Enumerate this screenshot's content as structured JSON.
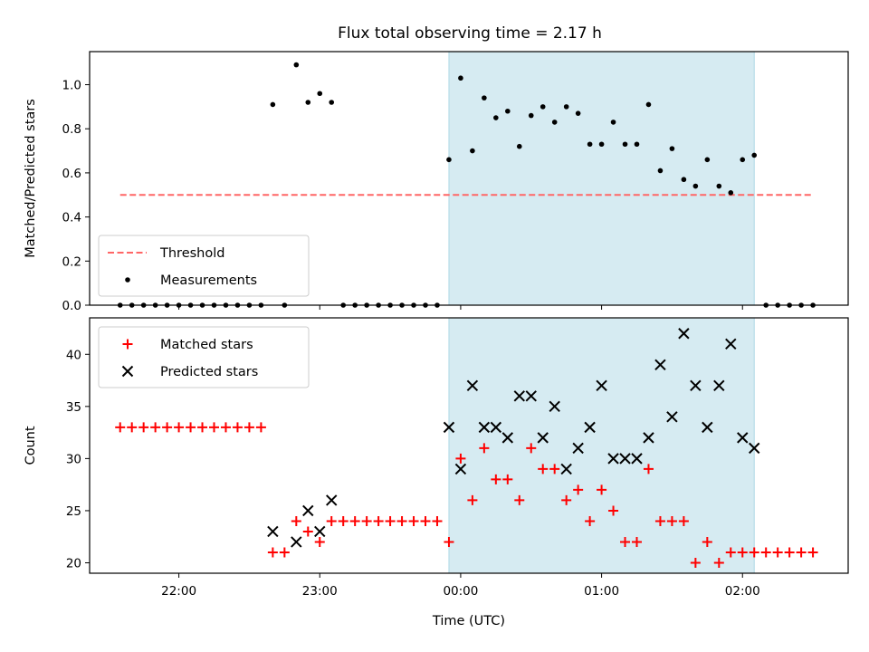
{
  "title": "Flux total observing time = 2.17 h",
  "chart_data": [
    {
      "type": "scatter",
      "ylabel": "Matched/Predicted stars",
      "xlim": [
        "21:22",
        "02:45"
      ],
      "ylim": [
        0,
        1.15
      ],
      "yticks": [
        "0.0",
        "0.2",
        "0.4",
        "0.6",
        "0.8",
        "1.0"
      ],
      "yticks_values": [
        0,
        0.2,
        0.4,
        0.6,
        0.8,
        1.0
      ],
      "shaded_interval": {
        "x": [
          "23:55",
          "02:05"
        ],
        "color": "#add8e6"
      },
      "threshold": {
        "name": "Threshold",
        "x": [
          "21:35",
          "02:30"
        ],
        "y": 0.5,
        "color": "#ff6666",
        "style": "dashed"
      },
      "legend": {
        "placement": "lower-left",
        "entries": [
          "Threshold",
          "Measurements"
        ]
      },
      "series": [
        {
          "name": "Measurements",
          "color": "#000000",
          "marker": "dot",
          "points": [
            [
              "21:35",
              0
            ],
            [
              "21:40",
              0
            ],
            [
              "21:45",
              0
            ],
            [
              "21:50",
              0
            ],
            [
              "21:55",
              0
            ],
            [
              "22:00",
              0
            ],
            [
              "22:05",
              0
            ],
            [
              "22:10",
              0
            ],
            [
              "22:15",
              0
            ],
            [
              "22:20",
              0
            ],
            [
              "22:25",
              0
            ],
            [
              "22:30",
              0
            ],
            [
              "22:35",
              0
            ],
            [
              "22:40",
              0.91
            ],
            [
              "22:45",
              0
            ],
            [
              "22:50",
              1.09
            ],
            [
              "22:55",
              0.92
            ],
            [
              "23:00",
              0.96
            ],
            [
              "23:05",
              0.92
            ],
            [
              "23:10",
              0
            ],
            [
              "23:15",
              0
            ],
            [
              "23:20",
              0
            ],
            [
              "23:25",
              0
            ],
            [
              "23:30",
              0
            ],
            [
              "23:35",
              0
            ],
            [
              "23:40",
              0
            ],
            [
              "23:45",
              0
            ],
            [
              "23:50",
              0
            ],
            [
              "23:55",
              0.66
            ],
            [
              "00:00",
              1.03
            ],
            [
              "00:05",
              0.7
            ],
            [
              "00:10",
              0.94
            ],
            [
              "00:15",
              0.85
            ],
            [
              "00:20",
              0.88
            ],
            [
              "00:25",
              0.72
            ],
            [
              "00:30",
              0.86
            ],
            [
              "00:35",
              0.9
            ],
            [
              "00:40",
              0.83
            ],
            [
              "00:45",
              0.9
            ],
            [
              "00:50",
              0.87
            ],
            [
              "00:55",
              0.73
            ],
            [
              "01:00",
              0.73
            ],
            [
              "01:05",
              0.83
            ],
            [
              "01:10",
              0.73
            ],
            [
              "01:15",
              0.73
            ],
            [
              "01:20",
              0.91
            ],
            [
              "01:25",
              0.61
            ],
            [
              "01:30",
              0.71
            ],
            [
              "01:35",
              0.57
            ],
            [
              "01:40",
              0.54
            ],
            [
              "01:45",
              0.66
            ],
            [
              "01:50",
              0.54
            ],
            [
              "01:55",
              0.51
            ],
            [
              "02:00",
              0.66
            ],
            [
              "02:05",
              0.68
            ],
            [
              "02:10",
              0
            ],
            [
              "02:15",
              0
            ],
            [
              "02:20",
              0
            ],
            [
              "02:25",
              0
            ],
            [
              "02:30",
              0
            ]
          ]
        }
      ]
    },
    {
      "type": "scatter",
      "xlabel": "Time (UTC)",
      "ylabel": "Count",
      "xlim": [
        "21:22",
        "02:45"
      ],
      "ylim": [
        19,
        43.5
      ],
      "xticks": [
        "22:00",
        "23:00",
        "00:00",
        "01:00",
        "02:00"
      ],
      "yticks": [
        "20",
        "25",
        "30",
        "35",
        "40"
      ],
      "yticks_values": [
        20,
        25,
        30,
        35,
        40
      ],
      "shaded_interval": {
        "x": [
          "23:55",
          "02:05"
        ],
        "color": "#add8e6"
      },
      "legend": {
        "placement": "upper-left",
        "entries": [
          "Matched stars",
          "Predicted stars"
        ]
      },
      "series": [
        {
          "name": "Matched stars",
          "color": "#ff0000",
          "marker": "plus",
          "points": [
            [
              "21:35",
              33
            ],
            [
              "21:40",
              33
            ],
            [
              "21:45",
              33
            ],
            [
              "21:50",
              33
            ],
            [
              "21:55",
              33
            ],
            [
              "22:00",
              33
            ],
            [
              "22:05",
              33
            ],
            [
              "22:10",
              33
            ],
            [
              "22:15",
              33
            ],
            [
              "22:20",
              33
            ],
            [
              "22:25",
              33
            ],
            [
              "22:30",
              33
            ],
            [
              "22:35",
              33
            ],
            [
              "22:40",
              21
            ],
            [
              "22:45",
              21
            ],
            [
              "22:50",
              24
            ],
            [
              "22:55",
              23
            ],
            [
              "23:00",
              22
            ],
            [
              "23:05",
              24
            ],
            [
              "23:10",
              24
            ],
            [
              "23:15",
              24
            ],
            [
              "23:20",
              24
            ],
            [
              "23:25",
              24
            ],
            [
              "23:30",
              24
            ],
            [
              "23:35",
              24
            ],
            [
              "23:40",
              24
            ],
            [
              "23:45",
              24
            ],
            [
              "23:50",
              24
            ],
            [
              "23:55",
              22
            ],
            [
              "00:00",
              30
            ],
            [
              "00:05",
              26
            ],
            [
              "00:10",
              31
            ],
            [
              "00:15",
              28
            ],
            [
              "00:20",
              28
            ],
            [
              "00:25",
              26
            ],
            [
              "00:30",
              31
            ],
            [
              "00:35",
              29
            ],
            [
              "00:40",
              29
            ],
            [
              "00:45",
              26
            ],
            [
              "00:50",
              27
            ],
            [
              "00:55",
              24
            ],
            [
              "01:00",
              27
            ],
            [
              "01:05",
              25
            ],
            [
              "01:10",
              22
            ],
            [
              "01:15",
              22
            ],
            [
              "01:20",
              29
            ],
            [
              "01:25",
              24
            ],
            [
              "01:30",
              24
            ],
            [
              "01:35",
              24
            ],
            [
              "01:40",
              20
            ],
            [
              "01:45",
              22
            ],
            [
              "01:50",
              20
            ],
            [
              "01:55",
              21
            ],
            [
              "02:00",
              21
            ],
            [
              "02:05",
              21
            ],
            [
              "02:10",
              21
            ],
            [
              "02:15",
              21
            ],
            [
              "02:20",
              21
            ],
            [
              "02:25",
              21
            ],
            [
              "02:30",
              21
            ]
          ]
        },
        {
          "name": "Predicted stars",
          "color": "#000000",
          "marker": "x",
          "points": [
            [
              "22:40",
              23
            ],
            [
              "22:50",
              22
            ],
            [
              "22:55",
              25
            ],
            [
              "23:00",
              23
            ],
            [
              "23:05",
              26
            ],
            [
              "23:55",
              33
            ],
            [
              "00:00",
              29
            ],
            [
              "00:05",
              37
            ],
            [
              "00:10",
              33
            ],
            [
              "00:15",
              33
            ],
            [
              "00:20",
              32
            ],
            [
              "00:25",
              36
            ],
            [
              "00:30",
              36
            ],
            [
              "00:35",
              32
            ],
            [
              "00:40",
              35
            ],
            [
              "00:45",
              29
            ],
            [
              "00:50",
              31
            ],
            [
              "00:55",
              33
            ],
            [
              "01:00",
              37
            ],
            [
              "01:05",
              30
            ],
            [
              "01:10",
              30
            ],
            [
              "01:15",
              30
            ],
            [
              "01:20",
              32
            ],
            [
              "01:25",
              39
            ],
            [
              "01:30",
              34
            ],
            [
              "01:35",
              42
            ],
            [
              "01:40",
              37
            ],
            [
              "01:45",
              33
            ],
            [
              "01:50",
              37
            ],
            [
              "01:55",
              41
            ],
            [
              "02:00",
              32
            ],
            [
              "02:05",
              31
            ]
          ]
        }
      ]
    }
  ]
}
